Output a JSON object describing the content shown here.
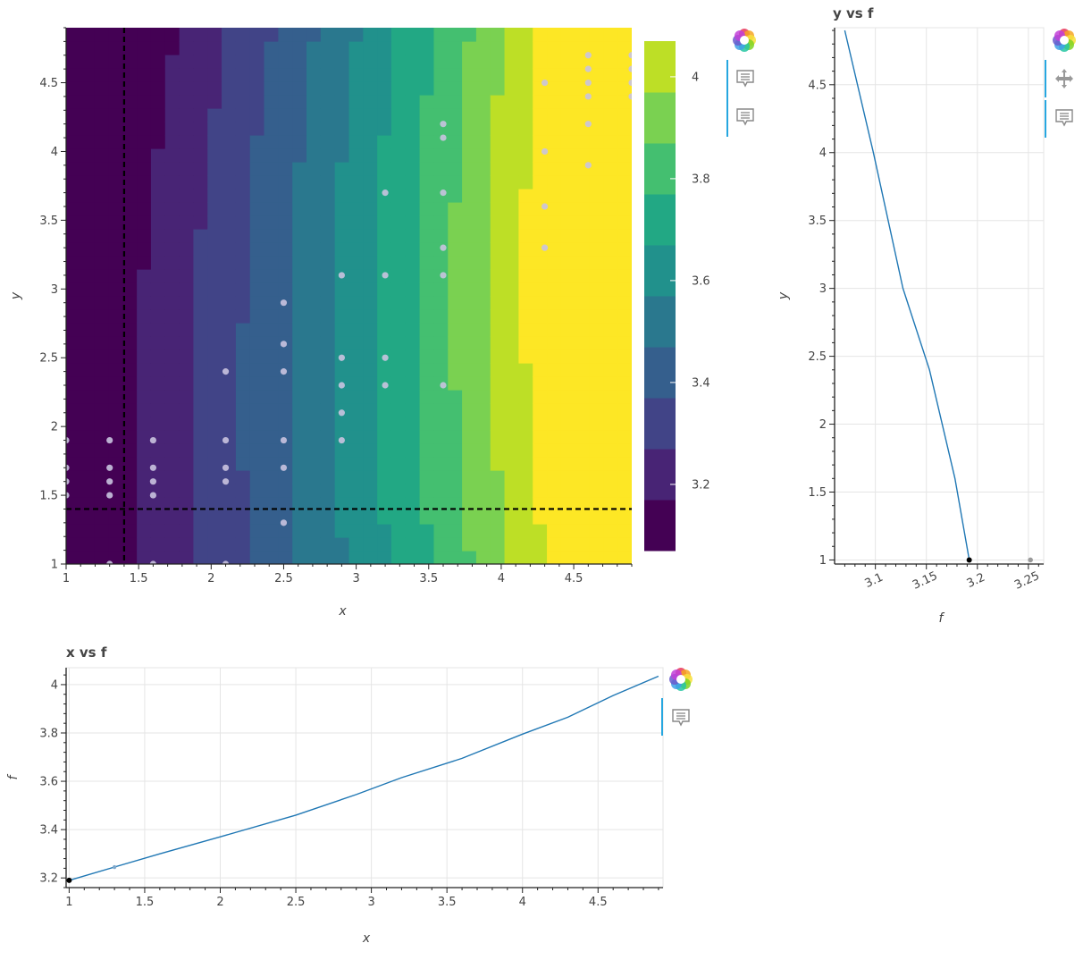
{
  "chart_data": [
    {
      "type": "heatmap",
      "title": "",
      "xlabel": "x",
      "ylabel": "y",
      "xlim": [
        1,
        4.9
      ],
      "ylim": [
        1,
        4.9
      ],
      "x_ticks": [
        "1",
        "1.5",
        "2",
        "2.5",
        "3",
        "3.5",
        "4",
        "4.5"
      ],
      "y_ticks": [
        "1",
        "1.5",
        "2",
        "2.5",
        "3",
        "3.5",
        "4",
        "4.5"
      ],
      "colormap": "viridis",
      "color_levels": [
        "#440154",
        "#482475",
        "#414487",
        "#355f8d",
        "#2a788e",
        "#21918c",
        "#22a884",
        "#44bf70",
        "#7ad151",
        "#bddf26",
        "#fde725"
      ],
      "colorbar": {
        "min": 3.07,
        "max": 4.07,
        "ticks": [
          "3.2",
          "3.4",
          "3.6",
          "3.8",
          "4"
        ]
      },
      "crosshair": {
        "x": 1.4,
        "y": 1.4
      },
      "sample_points": [
        [
          1,
          1.9
        ],
        [
          1,
          1.7
        ],
        [
          1,
          1.6
        ],
        [
          1,
          1.5
        ],
        [
          1.3,
          1.9
        ],
        [
          1.3,
          1.7
        ],
        [
          1.3,
          1.6
        ],
        [
          1.3,
          1.5
        ],
        [
          1.3,
          1
        ],
        [
          1.6,
          1.9
        ],
        [
          1.6,
          1.7
        ],
        [
          1.6,
          1.6
        ],
        [
          1.6,
          1.5
        ],
        [
          1.6,
          1
        ],
        [
          2.1,
          2.4
        ],
        [
          2.1,
          1.9
        ],
        [
          2.1,
          1.7
        ],
        [
          2.1,
          1.6
        ],
        [
          2.1,
          1
        ],
        [
          2.5,
          2.9
        ],
        [
          2.5,
          2.6
        ],
        [
          2.5,
          2.4
        ],
        [
          2.5,
          1.9
        ],
        [
          2.5,
          1.7
        ],
        [
          2.5,
          1.3
        ],
        [
          2.9,
          3.1
        ],
        [
          2.9,
          2.5
        ],
        [
          2.9,
          2.3
        ],
        [
          2.9,
          2.1
        ],
        [
          2.9,
          1.9
        ],
        [
          3.2,
          3.7
        ],
        [
          3.2,
          3.1
        ],
        [
          3.2,
          2.5
        ],
        [
          3.2,
          2.3
        ],
        [
          3.6,
          4.2
        ],
        [
          3.6,
          4.1
        ],
        [
          3.6,
          3.7
        ],
        [
          3.6,
          3.3
        ],
        [
          3.6,
          3.1
        ],
        [
          3.6,
          2.3
        ],
        [
          4.3,
          4.5
        ],
        [
          4.3,
          4.0
        ],
        [
          4.3,
          3.6
        ],
        [
          4.3,
          3.3
        ],
        [
          4.6,
          4.7
        ],
        [
          4.6,
          4.6
        ],
        [
          4.6,
          4.5
        ],
        [
          4.6,
          4.4
        ],
        [
          4.6,
          4.2
        ],
        [
          4.6,
          3.9
        ],
        [
          4.9,
          4.7
        ],
        [
          4.9,
          4.6
        ],
        [
          4.9,
          4.5
        ],
        [
          4.9,
          4.4
        ]
      ]
    },
    {
      "type": "line",
      "title": "y vs f",
      "xlabel": "f",
      "ylabel": "y",
      "xlim": [
        3.06,
        3.265
      ],
      "ylim": [
        0.97,
        4.92
      ],
      "x_ticks": [
        "3.1",
        "3.15",
        "3.2",
        "3.25"
      ],
      "y_ticks": [
        "1",
        "1.5",
        "2",
        "2.5",
        "3",
        "3.5",
        "4",
        "4.5"
      ],
      "series": [
        {
          "x": [
            3.07,
            3.098,
            3.127,
            3.153,
            3.178,
            3.192
          ],
          "y": [
            4.9,
            4.0,
            3.0,
            2.4,
            1.6,
            1.0
          ]
        }
      ],
      "current_point": {
        "f": 3.192,
        "y": 1.0
      },
      "extra_point": {
        "f": 3.252,
        "y": 1.0
      }
    },
    {
      "type": "line",
      "title": "x vs f",
      "xlabel": "x",
      "ylabel": "f",
      "xlim": [
        0.98,
        4.93
      ],
      "ylim": [
        3.16,
        4.07
      ],
      "x_ticks": [
        "1",
        "1.5",
        "2",
        "2.5",
        "3",
        "3.5",
        "4",
        "4.5"
      ],
      "y_ticks": [
        "3.2",
        "3.4",
        "3.6",
        "3.8",
        "4"
      ],
      "series": [
        {
          "x": [
            1,
            1.3,
            1.6,
            2.0,
            2.5,
            2.9,
            3.2,
            3.6,
            4.0,
            4.3,
            4.6,
            4.9
          ],
          "y": [
            3.19,
            3.245,
            3.3,
            3.37,
            3.46,
            3.545,
            3.615,
            3.695,
            3.795,
            3.865,
            3.955,
            4.035
          ]
        }
      ],
      "current_point": {
        "x": 1.0,
        "f": 3.19
      },
      "extra_point": {
        "x": 1.3,
        "f": 3.245
      }
    }
  ],
  "toolbar": {
    "logo_icon": "bokeh-logo-icon",
    "hover_icon": "hover-tooltip-icon",
    "pan_icon": "pan-move-icon",
    "active_color": "#26a7e0"
  }
}
